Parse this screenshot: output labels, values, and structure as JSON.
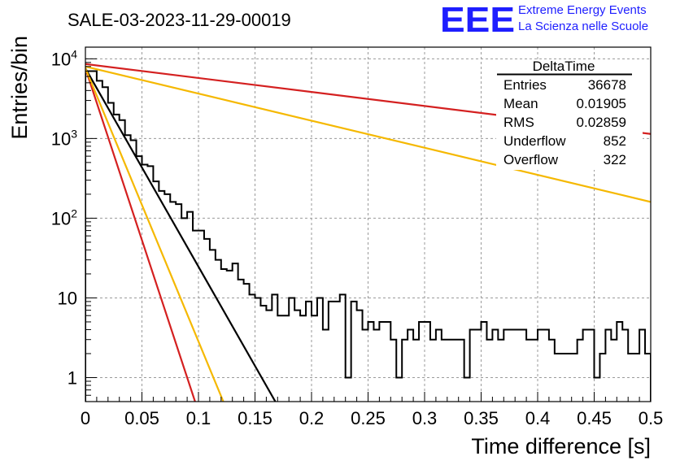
{
  "header": {
    "run_title": "SALE-03-2023-11-29-00019",
    "logo_text": "EEE",
    "logo_line1": "Extreme Energy Events",
    "logo_line2": "La Scienza nelle Scuole",
    "logo_color": "#1e1eff"
  },
  "chart_data": {
    "type": "histogram",
    "xlabel": "Time difference [s]",
    "ylabel": "Entries/bin",
    "xlim": [
      0,
      0.5
    ],
    "ylim": [
      0.5,
      14000
    ],
    "y_scale": "log",
    "grid": true,
    "x_ticks": [
      "0",
      "0.05",
      "0.1",
      "0.15",
      "0.2",
      "0.25",
      "0.3",
      "0.35",
      "0.4",
      "0.45",
      "0.5"
    ],
    "y_ticks": [
      {
        "base": "10",
        "exp": "4"
      },
      {
        "base": "10",
        "exp": "3"
      },
      {
        "base": "10",
        "exp": "2"
      },
      {
        "base": "10",
        "exp": ""
      },
      {
        "base": "1",
        "exp": ""
      }
    ],
    "bin_width": 0.005,
    "counts": [
      7000,
      7000,
      5300,
      4400,
      2800,
      2000,
      1700,
      1100,
      950,
      600,
      470,
      450,
      290,
      220,
      200,
      160,
      150,
      100,
      120,
      70,
      70,
      55,
      40,
      30,
      23,
      22,
      27,
      17,
      15,
      11,
      10,
      8,
      7,
      11,
      6,
      6,
      10,
      7,
      6,
      9,
      6,
      10,
      4,
      9,
      9,
      11,
      1,
      9,
      7,
      4,
      5,
      4,
      5,
      5,
      3,
      1,
      3,
      4,
      3,
      5,
      5,
      3,
      4,
      3,
      3,
      3,
      3,
      1,
      4,
      4,
      5,
      3,
      4,
      3,
      4,
      4,
      4,
      4,
      3,
      3,
      4,
      4,
      3,
      2,
      2,
      2,
      2,
      3,
      4,
      4,
      1,
      2,
      4,
      3,
      5,
      4,
      2,
      2,
      4,
      2
    ],
    "fits": [
      {
        "color": "#000000",
        "x": [
          0,
          0.168
        ],
        "y": [
          7600,
          0.5
        ]
      },
      {
        "color": "#d42020",
        "x": [
          0,
          0.097
        ],
        "y": [
          7600,
          0.5
        ]
      },
      {
        "color": "#f5b800",
        "x": [
          0,
          0.122
        ],
        "y": [
          7600,
          0.5
        ]
      },
      {
        "color": "#d42020",
        "x": [
          0,
          0.5
        ],
        "y": [
          8600,
          1140
        ]
      },
      {
        "color": "#f5b800",
        "x": [
          0,
          0.5
        ],
        "y": [
          8000,
          160
        ]
      }
    ],
    "stats": {
      "name": "DeltaTime",
      "rows": [
        {
          "label": "Entries",
          "value": "36678"
        },
        {
          "label": "Mean",
          "value": "0.01905"
        },
        {
          "label": "RMS",
          "value": "0.02859"
        },
        {
          "label": "Underflow",
          "value": "852"
        },
        {
          "label": "Overflow",
          "value": "322"
        }
      ]
    }
  }
}
